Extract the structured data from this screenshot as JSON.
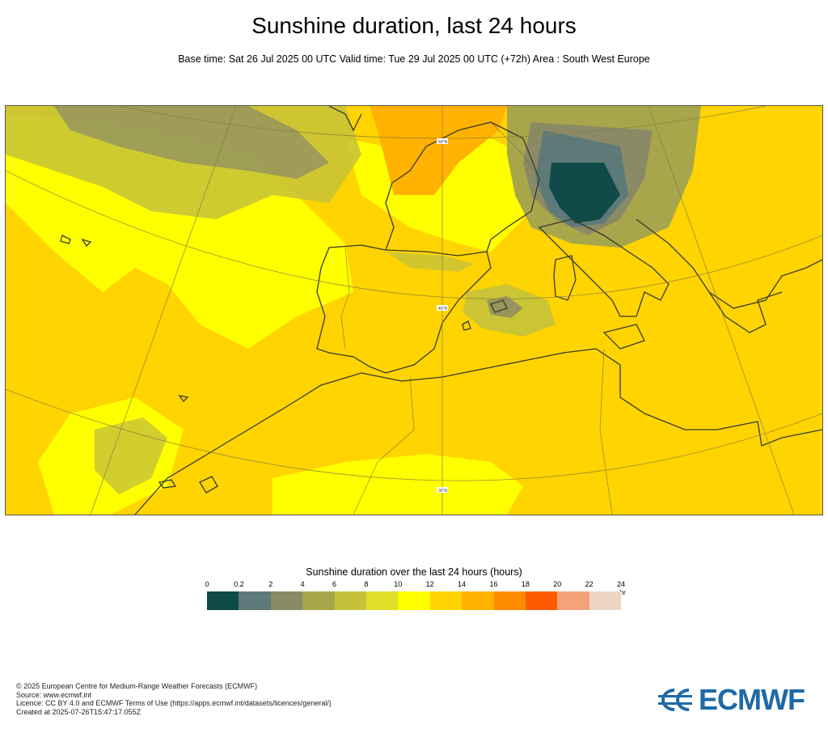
{
  "header": {
    "title": "Sunshine duration, last 24 hours",
    "subtitle": "Base time: Sat 26 Jul 2025 00 UTC Valid time: Tue 29 Jul 2025 00 UTC (+72h) Area : South West Europe"
  },
  "map": {
    "lat_labels": [
      "50°N",
      "40°N",
      "30°N"
    ]
  },
  "legend": {
    "title": "Sunshine duration over the last 24 hours (hours)",
    "unit": "-hr",
    "ticks": [
      "0",
      "0.2",
      "2",
      "4",
      "6",
      "8",
      "10",
      "12",
      "14",
      "16",
      "18",
      "20",
      "22",
      "24"
    ],
    "colors": [
      "#0f4a47",
      "#5e7a78",
      "#8a8a66",
      "#a8a64a",
      "#c5c23a",
      "#e0e02a",
      "#ffff00",
      "#ffd400",
      "#ffb300",
      "#ff8c00",
      "#ff5a00",
      "#f4a27a",
      "#eed6c6"
    ]
  },
  "footer": {
    "copyright": "© 2025 European Centre for Medium-Range Weather Forecasts (ECMWF)",
    "source": "Source: www.ecmwf.int",
    "licence": "Licence: CC BY 4.0 and ECMWF Terms of Use (https://apps.ecmwf.int/datasets/licences/general/)",
    "created": "Created at 2025-07-26T15:47:17.055Z"
  },
  "logo": {
    "text": "ECMWF",
    "color": "#1e6aa6"
  }
}
